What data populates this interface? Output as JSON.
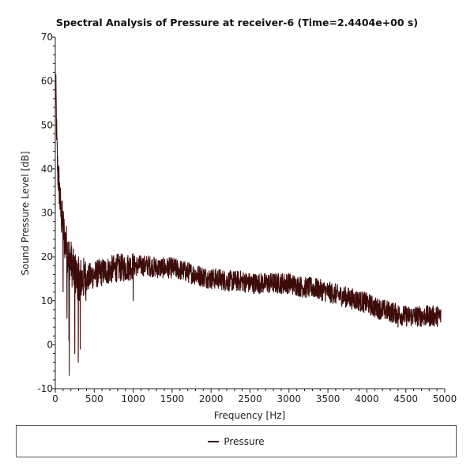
{
  "chart_data": {
    "type": "line",
    "title": "Spectral Analysis of Pressure at receiver-6 (Time=2.4404e+00 s)",
    "xlabel": "Frequency [Hz]",
    "ylabel": "Sound Pressure Level [dB]",
    "xlim": [
      0,
      5000
    ],
    "ylim": [
      -10,
      70
    ],
    "x_ticks": [
      "0",
      "500",
      "1000",
      "1500",
      "2000",
      "2500",
      "3000",
      "3500",
      "4000",
      "4500",
      "5000"
    ],
    "y_ticks": [
      "-10",
      "0",
      "10",
      "20",
      "30",
      "40",
      "50",
      "60",
      "70"
    ],
    "grid": false,
    "legend_position": "bottom",
    "series": [
      {
        "name": "Pressure",
        "color": "#3d0c0a",
        "x": [
          0,
          10,
          20,
          30,
          50,
          70,
          100,
          120,
          150,
          175,
          200,
          230,
          260,
          300,
          350,
          400,
          450,
          500,
          600,
          700,
          800,
          900,
          1000,
          1100,
          1200,
          1300,
          1400,
          1500,
          1600,
          1700,
          1800,
          1900,
          2000,
          2100,
          2200,
          2300,
          2400,
          2500,
          2600,
          2700,
          2800,
          2900,
          3000,
          3100,
          3200,
          3300,
          3400,
          3500,
          3600,
          3700,
          3800,
          3900,
          4000,
          4100,
          4200,
          4300,
          4400,
          4500,
          4600,
          4700,
          4800,
          4900,
          4950
        ],
        "y": [
          61,
          55,
          45,
          40,
          36,
          30,
          27,
          24,
          22,
          20,
          19,
          17,
          16,
          15,
          15,
          15,
          15.5,
          16,
          16.5,
          17,
          17.5,
          17.5,
          18,
          18,
          18,
          17.5,
          17.5,
          17.5,
          17,
          16.5,
          16,
          15.5,
          15,
          15,
          14.5,
          14.5,
          14.5,
          14,
          14,
          14,
          14,
          14,
          14,
          13.5,
          13,
          13,
          12.5,
          12,
          11.5,
          11,
          10.5,
          10,
          9.5,
          8.5,
          8,
          7.5,
          7,
          6.5,
          6.5,
          6.5,
          6.5,
          6.5,
          6.5
        ],
        "min_dips": [
          {
            "x": 150,
            "y": 6
          },
          {
            "x": 175,
            "y": 1
          },
          {
            "x": 180,
            "y": -7
          },
          {
            "x": 250,
            "y": -2
          },
          {
            "x": 295,
            "y": -4
          },
          {
            "x": 320,
            "y": -1
          },
          {
            "x": 100,
            "y": 12
          },
          {
            "x": 1000,
            "y": 10
          },
          {
            "x": 4400,
            "y": 4
          }
        ]
      }
    ]
  }
}
